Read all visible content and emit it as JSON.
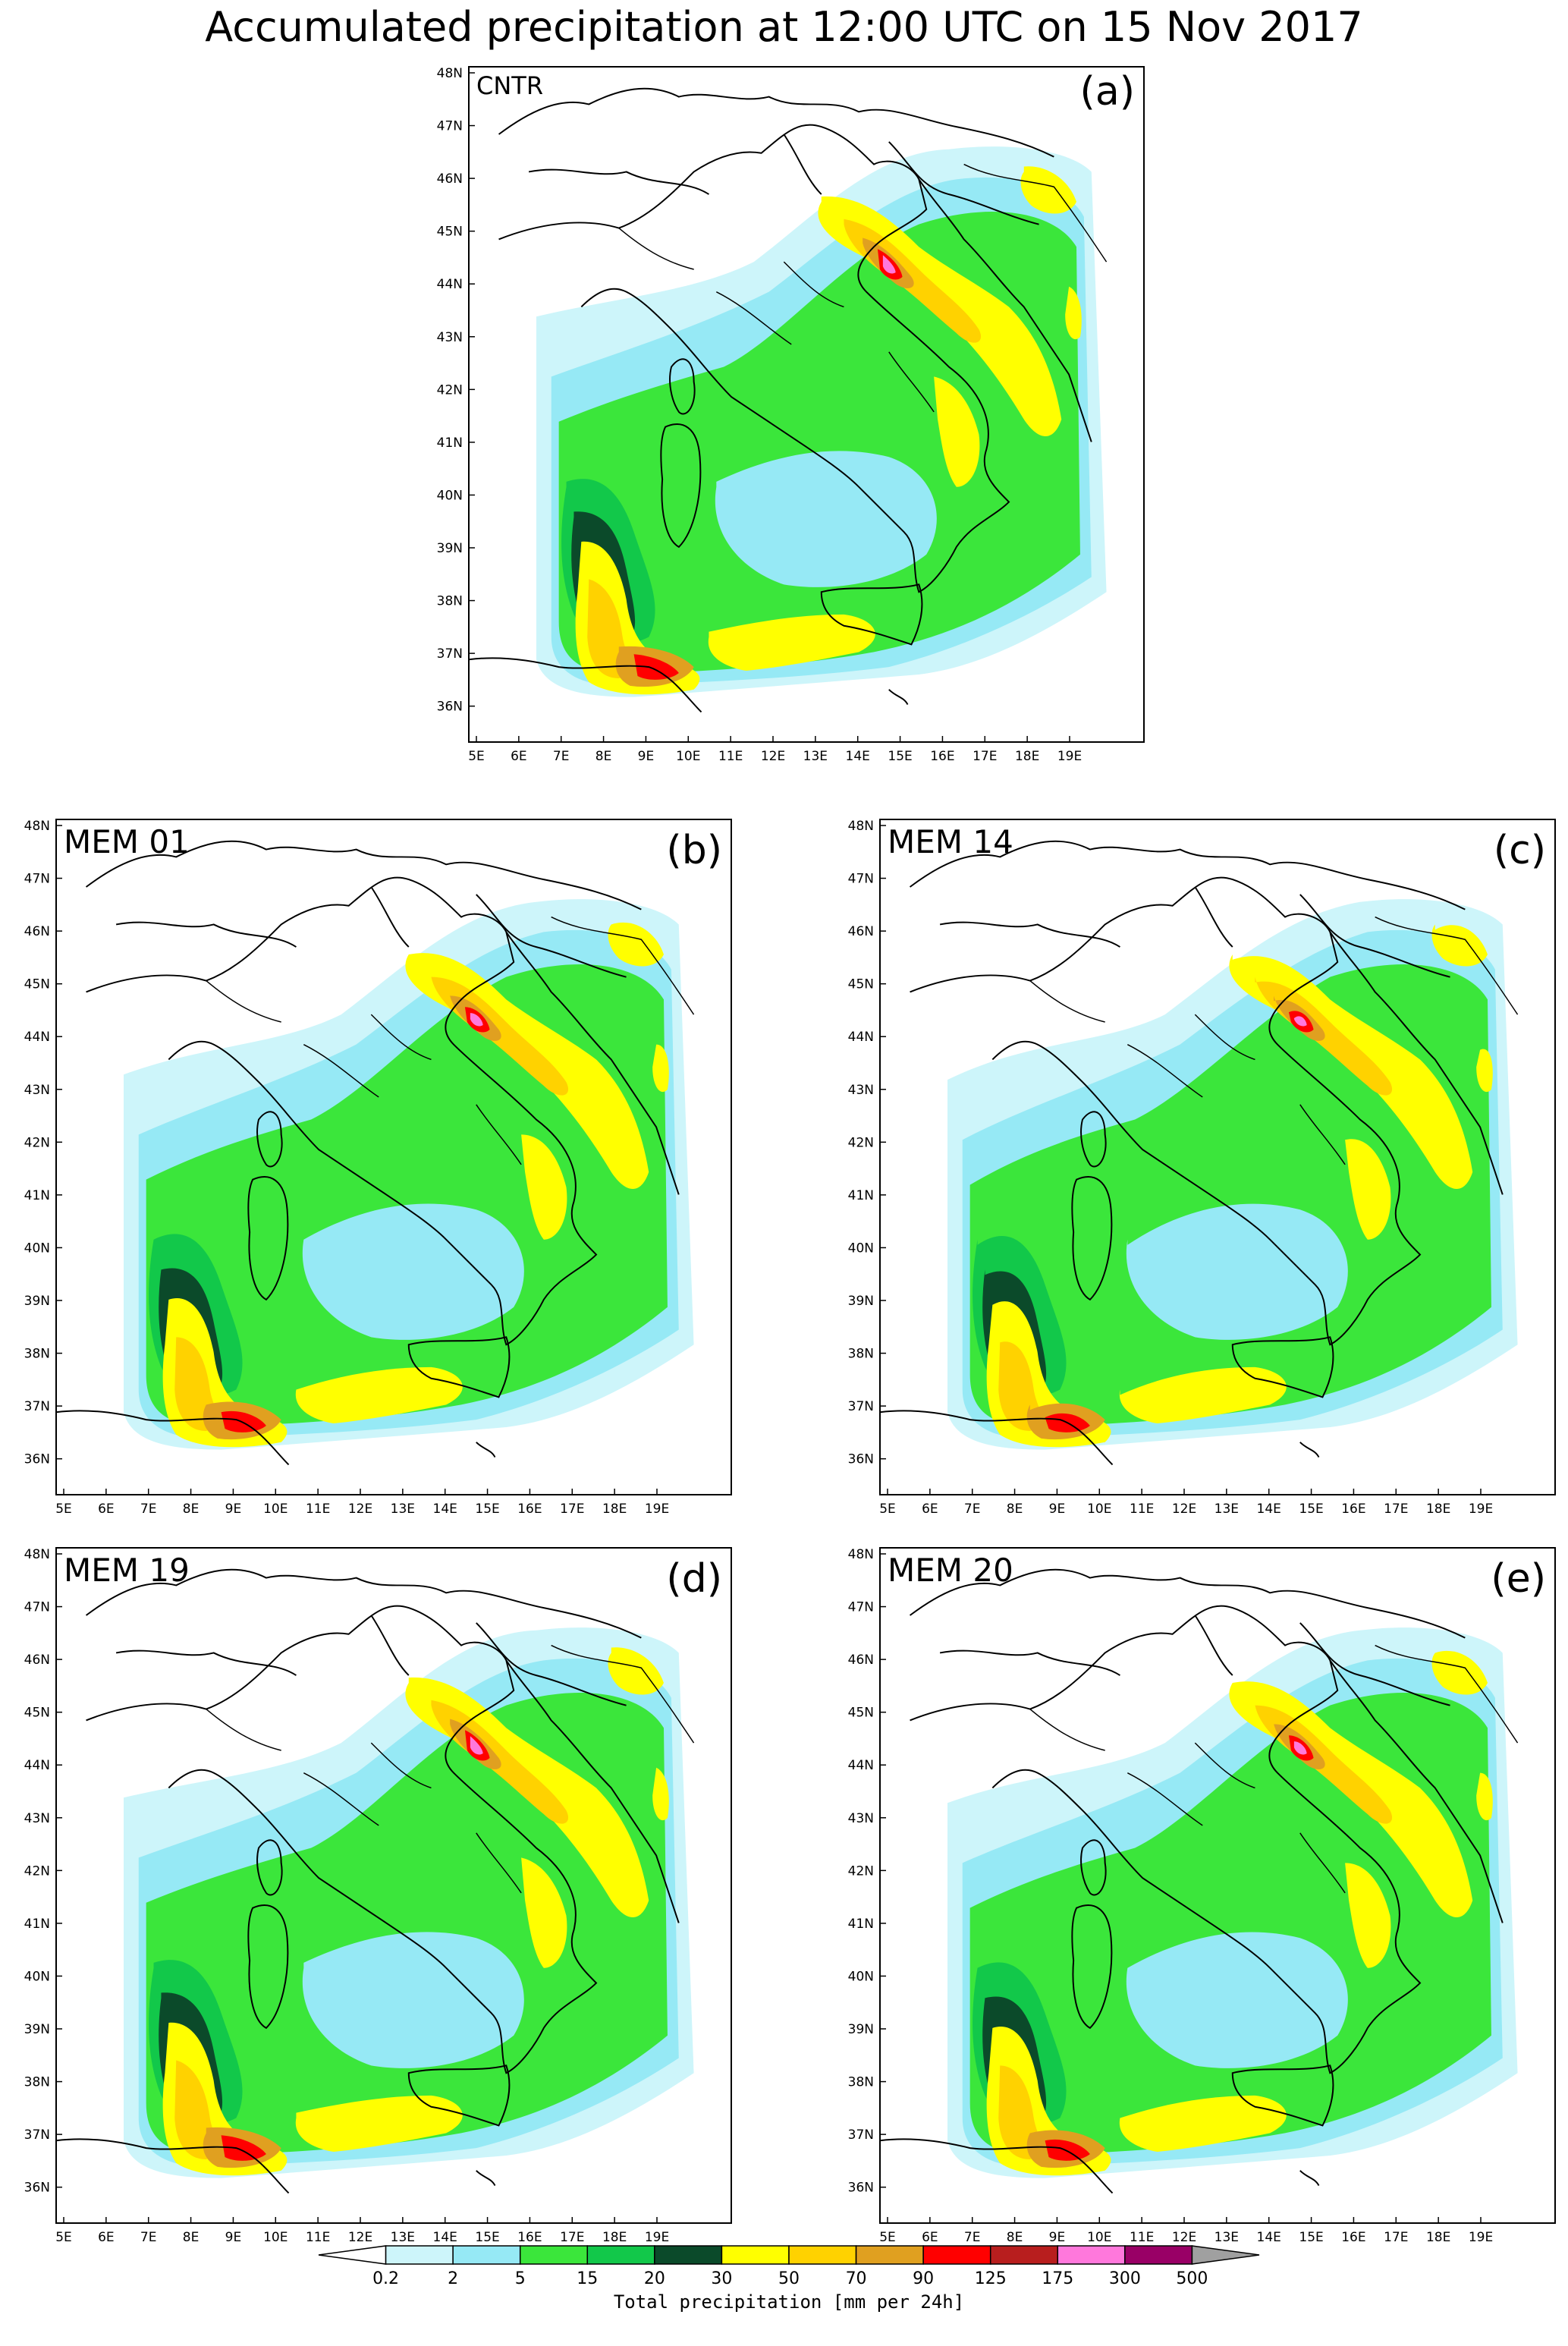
{
  "title": "Accumulated precipitation at 12:00 UTC on 15 Nov 2017",
  "lat_labels": [
    "48N",
    "47N",
    "46N",
    "45N",
    "44N",
    "43N",
    "42N",
    "41N",
    "40N",
    "39N",
    "38N",
    "37N",
    "36N"
  ],
  "lon_labels": [
    "5E",
    "6E",
    "7E",
    "8E",
    "9E",
    "10E",
    "11E",
    "12E",
    "13E",
    "14E",
    "15E",
    "16E",
    "17E",
    "18E",
    "19E"
  ],
  "panels": [
    {
      "name": "CNTR",
      "tag": "(a)"
    },
    {
      "name": "MEM 01",
      "tag": "(b)"
    },
    {
      "name": "MEM 14",
      "tag": "(c)"
    },
    {
      "name": "MEM 19",
      "tag": "(d)"
    },
    {
      "name": "MEM 20",
      "tag": "(e)"
    }
  ],
  "colorbar": {
    "label": "Total precipitation [mm per 24h]",
    "ticks": [
      "0.2",
      "2",
      "5",
      "15",
      "20",
      "30",
      "50",
      "70",
      "90",
      "125",
      "175",
      "300",
      "500"
    ],
    "colors": [
      "#ffffff",
      "#cdf5fa",
      "#96e9f5",
      "#3be63b",
      "#12c84a",
      "#0b4a2a",
      "#ffff00",
      "#ffd200",
      "#e0a020",
      "#ff0000",
      "#b81e1e",
      "#ff78dc",
      "#990066",
      "#a0a0a0"
    ]
  },
  "precip_colors": {
    "light": "#cdf5fa",
    "cyan": "#96e9f5",
    "green": "#3be63b",
    "midgreen": "#12c84a",
    "dark": "#0b4a2a",
    "yellow": "#ffff00",
    "gold": "#ffd200",
    "orange": "#e0a020",
    "red": "#ff0000",
    "pink": "#ff78dc"
  }
}
